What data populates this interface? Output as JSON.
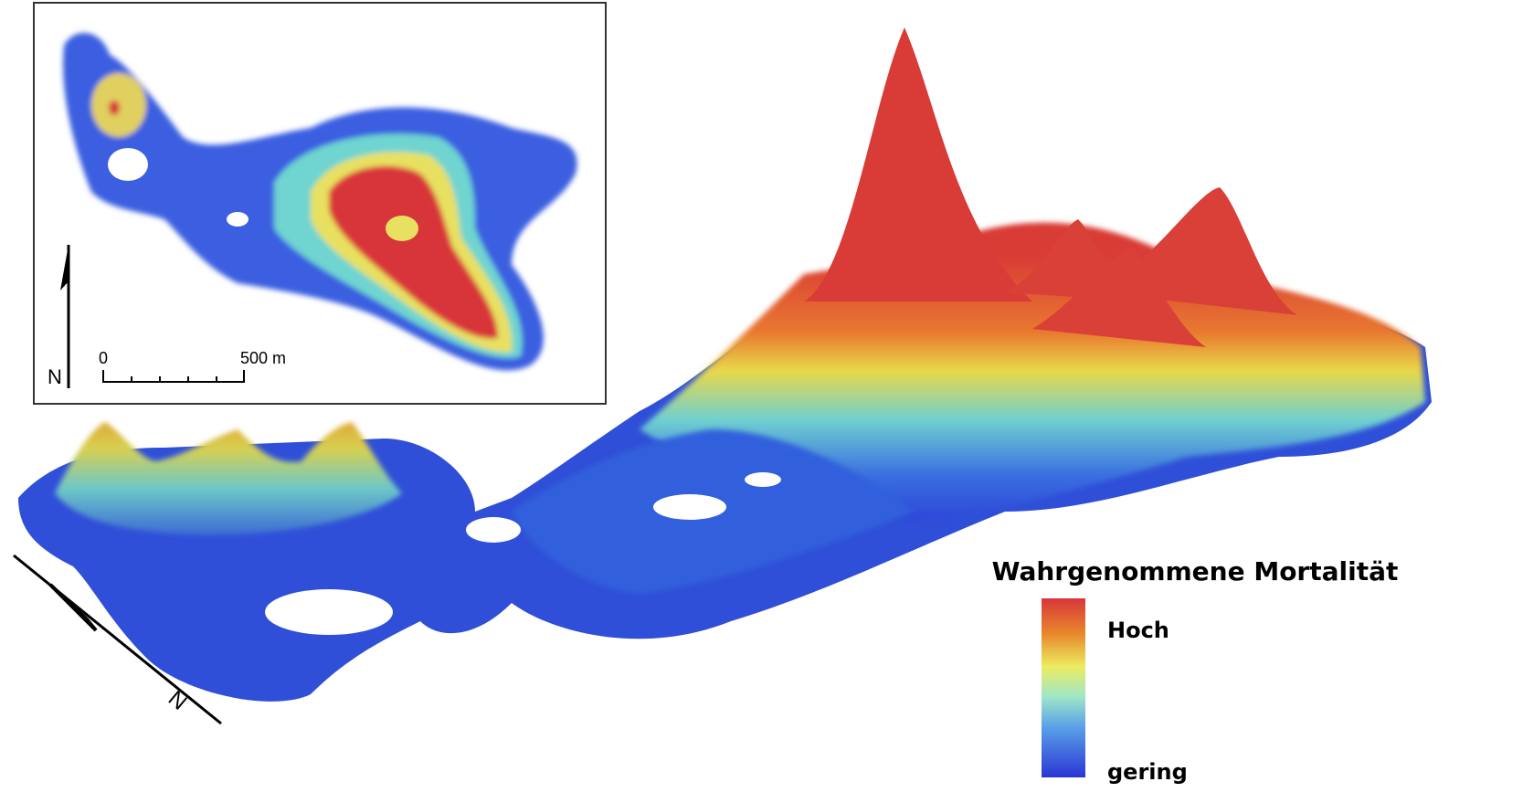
{
  "inset": {
    "north_label": "N",
    "scale_start": "0",
    "scale_end": "500 m"
  },
  "north_arrow_label": "N",
  "legend": {
    "title": "Wahrgenommene Mortalität",
    "high": "Hoch",
    "low": "gering"
  }
}
